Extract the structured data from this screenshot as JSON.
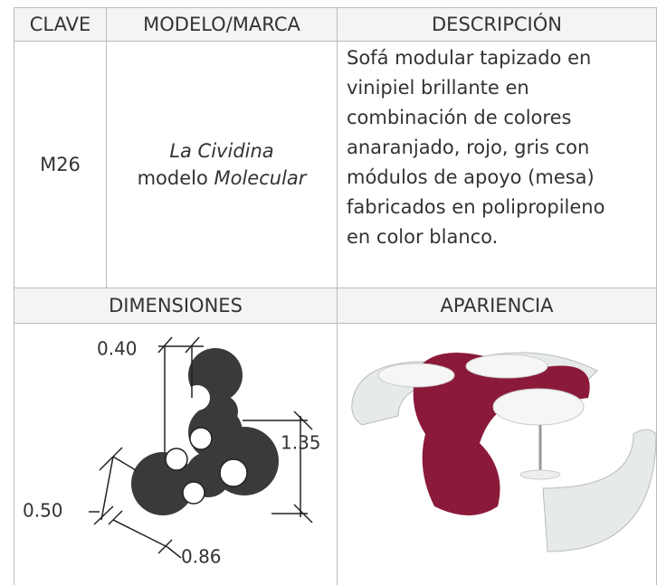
{
  "table": {
    "headers": [
      "CLAVE",
      "MODELO/MARCA",
      "DESCRIPCIÓN"
    ],
    "rows": [
      {
        "clave": "M26",
        "modelo": {
          "brand": "La Cividina",
          "prefix": "modelo",
          "name": "Molecular"
        },
        "description": [
          "Sofá modular tapizado en",
          "vinipiel brillante en",
          "combinación de colores",
          "anaranjado, rojo, gris con",
          "módulos de apoyo (mesa)",
          "fabricados en polipropileno",
          "en color blanco."
        ]
      }
    ],
    "section_headers": [
      "DIMENSIONES",
      "APARIENCIA"
    ]
  },
  "dimensions": {
    "labels": [
      "0.40",
      "1.35",
      "0.50",
      "0.86"
    ]
  }
}
